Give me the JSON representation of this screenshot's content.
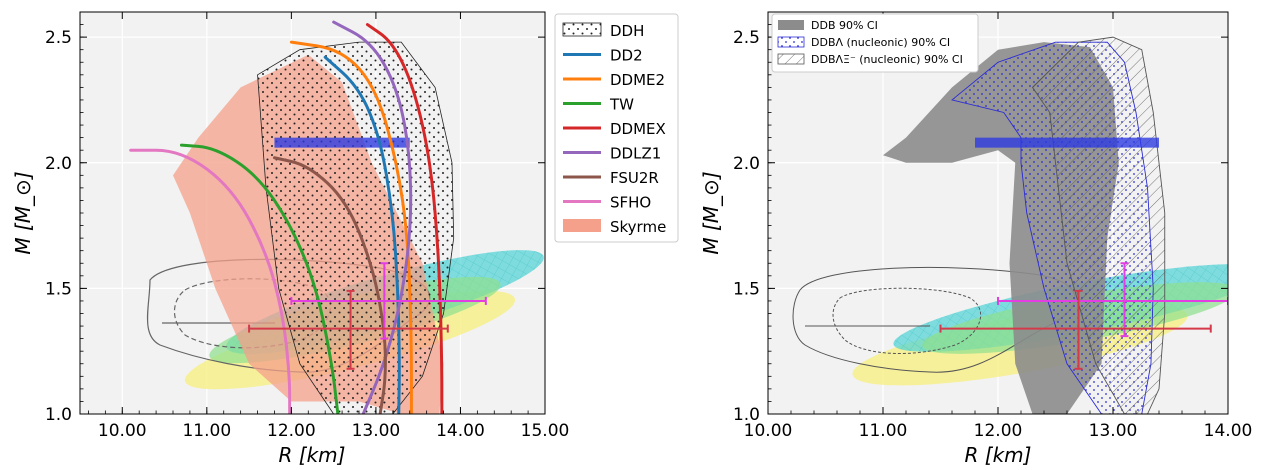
{
  "colors": {
    "panel_bg": "#f2f2f2",
    "grid": "#ffffff",
    "skyrme": "#f4a08a",
    "nicer_cyan": "#4fd3d6",
    "nicer_green": "#8ee08e",
    "nicer_yellow": "#f7f08c",
    "gw_band": "#2e3be0",
    "magenta": "#e23ee2",
    "crimson": "#d43a4a",
    "ddb_gray": "#8c8c8c",
    "ddbl_blue": "#2b2bd6"
  },
  "chart_data": [
    {
      "type": "line",
      "xlabel": "R [km]",
      "ylabel": "M [M_⊙]",
      "xlim": [
        9.5,
        15.0
      ],
      "ylim": [
        1.0,
        2.6
      ],
      "xticks": [
        "10.00",
        "11.00",
        "12.00",
        "13.00",
        "14.00",
        "15.00"
      ],
      "yticks": [
        "1.0",
        "1.5",
        "2.0",
        "2.5"
      ],
      "legend_position": "outside-right",
      "legend": [
        "DDH",
        "DD2",
        "DDME2",
        "TW",
        "DDMEX",
        "DDLZ1",
        "FSU2R",
        "SFHO",
        "Skyrme"
      ],
      "series": [
        {
          "name": "DD2",
          "color": "#1f77b4",
          "x": [
            12.4,
            12.8,
            13.05,
            13.2,
            13.26,
            13.28,
            13.27
          ],
          "y": [
            2.42,
            2.3,
            2.1,
            1.8,
            1.5,
            1.2,
            1.0
          ]
        },
        {
          "name": "DDME2",
          "color": "#ff7f0e",
          "x": [
            12.0,
            12.6,
            13.0,
            13.25,
            13.38,
            13.42,
            13.42
          ],
          "y": [
            2.48,
            2.45,
            2.3,
            2.0,
            1.7,
            1.3,
            1.0
          ]
        },
        {
          "name": "TW",
          "color": "#2ca02c",
          "x": [
            10.7,
            11.1,
            11.6,
            12.0,
            12.3,
            12.48,
            12.55
          ],
          "y": [
            2.07,
            2.06,
            1.95,
            1.75,
            1.5,
            1.2,
            1.0
          ]
        },
        {
          "name": "DDMEX",
          "color": "#d62728",
          "x": [
            12.9,
            13.2,
            13.45,
            13.65,
            13.75,
            13.78,
            13.78
          ],
          "y": [
            2.55,
            2.48,
            2.3,
            2.0,
            1.6,
            1.2,
            1.0
          ]
        },
        {
          "name": "DDLZ1",
          "color": "#9467bd",
          "x": [
            12.5,
            12.95,
            13.25,
            13.4,
            13.42,
            13.3,
            13.1,
            12.85
          ],
          "y": [
            2.56,
            2.48,
            2.3,
            2.05,
            1.75,
            1.45,
            1.2,
            1.0
          ]
        },
        {
          "name": "FSU2R",
          "color": "#8c564b",
          "x": [
            11.8,
            12.2,
            12.65,
            12.95,
            13.1,
            13.12,
            13.05
          ],
          "y": [
            2.02,
            1.99,
            1.85,
            1.6,
            1.35,
            1.15,
            1.0
          ]
        },
        {
          "name": "SFHO",
          "color": "#e377c2",
          "x": [
            10.1,
            10.7,
            11.3,
            11.7,
            11.9,
            11.98,
            11.98
          ],
          "y": [
            2.05,
            2.05,
            1.9,
            1.65,
            1.4,
            1.15,
            1.0
          ]
        }
      ],
      "regions": [
        {
          "name": "Skyrme",
          "x": [
            10.6,
            10.9,
            11.4,
            12.2,
            12.6,
            12.95,
            13.55,
            13.8,
            13.75,
            13.7,
            13.3,
            12.8,
            12.0,
            11.5,
            11.1,
            10.8,
            10.6
          ],
          "y": [
            1.95,
            2.1,
            2.3,
            2.43,
            2.32,
            2.0,
            1.6,
            1.2,
            1.0,
            1.0,
            1.0,
            1.05,
            1.05,
            1.2,
            1.5,
            1.8,
            1.95
          ]
        },
        {
          "name": "DDH",
          "x": [
            11.6,
            12.1,
            12.8,
            13.3,
            13.7,
            13.9,
            13.92,
            13.8,
            13.55,
            13.2,
            12.9,
            12.5,
            12.1,
            11.85,
            11.7,
            11.6
          ],
          "y": [
            2.35,
            2.45,
            2.48,
            2.48,
            2.3,
            2.0,
            1.7,
            1.4,
            1.15,
            1.0,
            1.0,
            1.0,
            1.2,
            1.5,
            1.9,
            2.35
          ]
        }
      ],
      "horizontal_errorbars": [
        {
          "color": "magenta",
          "center": [
            13.1,
            1.45
          ],
          "x_range": [
            12.0,
            14.3
          ],
          "y_range": [
            1.3,
            1.6
          ]
        },
        {
          "color": "crimson",
          "center": [
            12.7,
            1.34
          ],
          "x_range": [
            11.5,
            13.85
          ],
          "y_range": [
            1.18,
            1.49
          ]
        }
      ],
      "gw_band": {
        "x_range": [
          11.8,
          13.4
        ],
        "y": 2.08
      }
    },
    {
      "type": "area",
      "xlabel": "R [km]",
      "ylabel": "M [M_⊙]",
      "xlim": [
        10.0,
        14.0
      ],
      "ylim": [
        1.0,
        2.6
      ],
      "xticks": [
        "10.00",
        "11.00",
        "12.00",
        "13.00",
        "14.00"
      ],
      "yticks": [
        "1.0",
        "1.5",
        "2.0",
        "2.5"
      ],
      "legend_position": "top-left",
      "legend": [
        "DDB 90% CI",
        "DDBΛ (nucleonic) 90% CI",
        "DDBΛΞ⁻ (nucleonic) 90% CI"
      ],
      "regions": [
        {
          "name": "DDB 90% CI",
          "x": [
            11.0,
            11.2,
            11.6,
            12.0,
            12.4,
            12.8,
            13.0,
            13.05,
            12.95,
            12.9,
            12.6,
            12.3,
            12.15,
            12.1,
            12.15,
            12.0,
            11.6,
            11.2,
            11.0
          ],
          "y": [
            2.03,
            2.1,
            2.3,
            2.45,
            2.48,
            2.46,
            2.3,
            2.0,
            1.7,
            1.2,
            1.0,
            1.0,
            1.2,
            1.6,
            2.0,
            2.05,
            2.0,
            2.0,
            2.03
          ]
        },
        {
          "name": "DDBΛ (nucleonic) 90% CI",
          "x": [
            11.6,
            12.0,
            12.5,
            12.95,
            13.1,
            13.2,
            13.3,
            13.35,
            13.33,
            13.25,
            13.2,
            12.9,
            12.6,
            12.4,
            12.25,
            12.2,
            12.2,
            12.05,
            11.6
          ],
          "y": [
            2.25,
            2.4,
            2.48,
            2.48,
            2.4,
            2.2,
            1.9,
            1.5,
            1.2,
            1.0,
            1.0,
            1.0,
            1.2,
            1.5,
            1.8,
            2.0,
            2.1,
            2.2,
            2.25
          ]
        },
        {
          "name": "DDBΛΞ⁻ (nucleonic) 90% CI",
          "x": [
            12.3,
            12.7,
            13.0,
            13.25,
            13.35,
            13.45,
            13.45,
            13.4,
            13.3,
            13.1,
            12.85,
            12.6,
            12.5,
            12.45,
            12.3
          ],
          "y": [
            2.3,
            2.48,
            2.5,
            2.45,
            2.2,
            1.8,
            1.4,
            1.1,
            1.0,
            1.0,
            1.2,
            1.6,
            2.0,
            2.2,
            2.3
          ]
        }
      ],
      "horizontal_errorbars": [
        {
          "color": "magenta",
          "center": [
            13.1,
            1.45
          ],
          "x_range": [
            12.0,
            14.0
          ],
          "y_range": [
            1.31,
            1.6
          ]
        },
        {
          "color": "crimson",
          "center": [
            12.7,
            1.34
          ],
          "x_range": [
            11.5,
            13.85
          ],
          "y_range": [
            1.18,
            1.49
          ]
        }
      ],
      "gw_band": {
        "x_range": [
          11.8,
          13.4
        ],
        "y": 2.08
      }
    }
  ]
}
